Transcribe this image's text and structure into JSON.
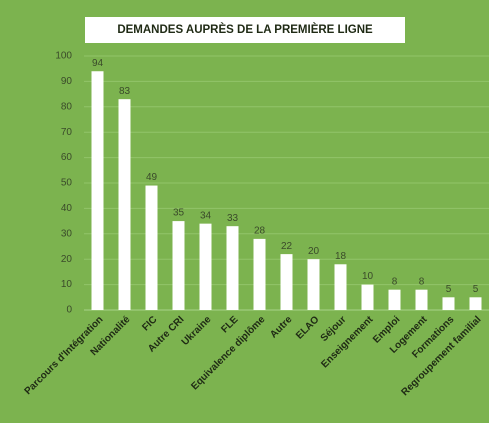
{
  "chart_data": {
    "type": "bar",
    "title": "DEMANDES AUPRÈS DE LA PREMIÈRE LIGNE",
    "categories": [
      "Parcours d'Intégration",
      "Nationalité",
      "FIC",
      "Autre CRI",
      "Ukraine",
      "FLE",
      "Equivalence diplôme",
      "Autre",
      "ELAO",
      "Séjour",
      "Enseignement",
      "Emploi",
      "Logement",
      "Formations",
      "Regroupement familial"
    ],
    "values": [
      94,
      83,
      49,
      35,
      34,
      33,
      28,
      22,
      20,
      18,
      10,
      8,
      8,
      5,
      5
    ],
    "color": "#ffffff",
    "ylim": [
      0,
      100
    ],
    "yticks": [
      0,
      10,
      20,
      30,
      40,
      50,
      60,
      70,
      80,
      90,
      100
    ],
    "grid": true
  }
}
